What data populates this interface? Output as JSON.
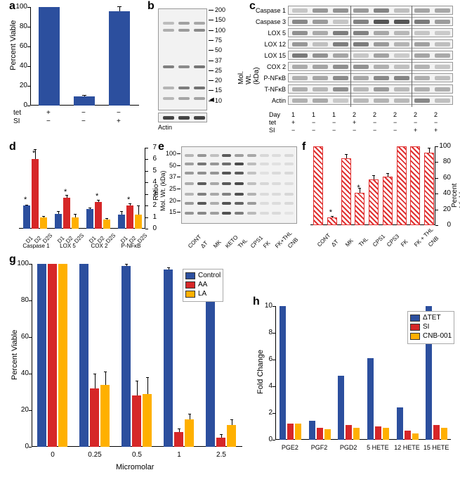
{
  "colors": {
    "blue": "#2c4f9e",
    "red": "#d62728",
    "orange": "#ffb000",
    "hatchred": "#e03030",
    "black": "#000000",
    "gray": "#888888"
  },
  "a": {
    "label": "a",
    "ylabel": "Percent Viable",
    "ylim": [
      0,
      100
    ],
    "ytick_step": 20,
    "x_labels_top": [
      "tet",
      "SI"
    ],
    "conditions": [
      {
        "tet": "+",
        "si": "−",
        "value": 100,
        "err": 0
      },
      {
        "tet": "−",
        "si": "−",
        "value": 9,
        "err": 2
      },
      {
        "tet": "−",
        "si": "+",
        "value": 96,
        "err": 5
      }
    ],
    "bar_color": "#2c4f9e"
  },
  "b": {
    "label": "b",
    "mw_markers": [
      200,
      150,
      100,
      75,
      50,
      37,
      25,
      20,
      15,
      10
    ],
    "mw_axis_label": "Mol. Wt. (kDa)",
    "bottom_label": "Actin",
    "lane_conditions": [
      "+",
      "−",
      "+"
    ]
  },
  "c": {
    "label": "c",
    "row_labels": [
      "Caspase 1",
      "Caspase 3",
      "LOX 5",
      "LOX 12",
      "LOX 15",
      "COX 2",
      "P-NFκB",
      "T-NFκB",
      "Actin"
    ],
    "col_headers": {
      "Day": [
        "1",
        "1",
        "1",
        "2",
        "2",
        "2",
        "2",
        "2"
      ],
      "tet": [
        "+",
        "−",
        "−",
        "+",
        "−",
        "−",
        "−",
        "−"
      ],
      "SI": [
        "−",
        "−",
        "−",
        "−",
        "−",
        "−",
        "+",
        "+"
      ]
    }
  },
  "d": {
    "label": "d",
    "ylabel": "Ratio",
    "ylim": [
      0,
      7
    ],
    "ytick_step": 1,
    "groups": [
      "Caspase 1",
      "LOX 5",
      "COX 2",
      "P-NFκB"
    ],
    "series": [
      "D1",
      "D2",
      "D2S"
    ],
    "colors": [
      "#2c4f9e",
      "#d62728",
      "#ffb000"
    ],
    "data": {
      "Caspase 1": {
        "D1": {
          "v": 2.0,
          "e": 0.1,
          "star": true
        },
        "D2": {
          "v": 6.0,
          "e": 0.9,
          "star": true
        },
        "D2S": {
          "v": 1.0,
          "e": 0.1
        }
      },
      "LOX 5": {
        "D1": {
          "v": 1.3,
          "e": 0.2
        },
        "D2": {
          "v": 2.7,
          "e": 0.2,
          "star": true
        },
        "D2S": {
          "v": 1.0,
          "e": 0.3
        }
      },
      "COX 2": {
        "D1": {
          "v": 1.7,
          "e": 0.1
        },
        "D2": {
          "v": 2.3,
          "e": 0.2,
          "star": true
        },
        "D2S": {
          "v": 0.8,
          "e": 0.1
        }
      },
      "P-NFκB": {
        "D1": {
          "v": 1.2,
          "e": 0.3
        },
        "D2": {
          "v": 2.0,
          "e": 0.2,
          "star": true
        },
        "D2S": {
          "v": 1.2,
          "e": 0.8
        }
      }
    }
  },
  "e": {
    "label": "e",
    "mw_axis_label": "Mol. Wt. (kDa)",
    "mw_markers": [
      100,
      50,
      37,
      25,
      20,
      15
    ],
    "lane_labels": [
      "CONT",
      "ΔT",
      "MK",
      "KETO",
      "THL",
      "CPS1",
      "FK",
      "FK+THL",
      "CNB"
    ]
  },
  "f": {
    "label": "f",
    "ylabel": "Percent Viable",
    "ylim": [
      0,
      100
    ],
    "ytick_step": 20,
    "categories": [
      "CONT",
      "ΔT",
      "MK",
      "THL",
      "CPS1",
      "CPS3",
      "FK",
      "FK + THL",
      "CNB"
    ],
    "values": [
      100,
      10,
      85,
      41,
      58,
      62,
      100,
      100,
      92
    ],
    "errs": [
      0,
      2,
      5,
      6,
      5,
      4,
      0,
      0,
      6
    ],
    "stars": [
      false,
      true,
      false,
      true,
      false,
      false,
      false,
      false,
      false
    ]
  },
  "g": {
    "label": "g",
    "ylabel": "Percent Viable",
    "xlabel": "Micromolar",
    "x_categories": [
      "0",
      "0.25",
      "0.5",
      "1",
      "2.5"
    ],
    "series": [
      {
        "name": "Control",
        "color": "#2c4f9e",
        "values": [
          100,
          100,
          99,
          97,
          90
        ],
        "errs": [
          0,
          0,
          1,
          1,
          2
        ]
      },
      {
        "name": "AA",
        "color": "#d62728",
        "values": [
          100,
          32,
          28,
          8,
          5
        ],
        "errs": [
          0,
          8,
          8,
          2,
          2
        ]
      },
      {
        "name": "LA",
        "color": "#ffb000",
        "values": [
          100,
          34,
          29,
          15,
          12
        ],
        "errs": [
          0,
          7,
          9,
          3,
          3
        ]
      }
    ],
    "ylim": [
      0,
      100
    ],
    "ytick_step": 20
  },
  "h": {
    "label": "h",
    "ylabel": "Fold Change",
    "x_categories": [
      "PGE2",
      "PGF2",
      "PGD2",
      "5 HETE",
      "12 HETE",
      "15 HETE"
    ],
    "series": [
      {
        "name": "ΔTET",
        "color": "#2c4f9e",
        "values": [
          10.0,
          1.4,
          4.8,
          6.1,
          2.4,
          10.3
        ]
      },
      {
        "name": "SI",
        "color": "#d62728",
        "values": [
          1.2,
          0.9,
          1.1,
          1.0,
          0.7,
          1.1
        ]
      },
      {
        "name": "CNB-001",
        "color": "#ffb000",
        "values": [
          1.2,
          0.8,
          0.9,
          0.9,
          0.5,
          0.9
        ]
      }
    ],
    "ylim": [
      0,
      10
    ],
    "ytick_step": 2
  }
}
